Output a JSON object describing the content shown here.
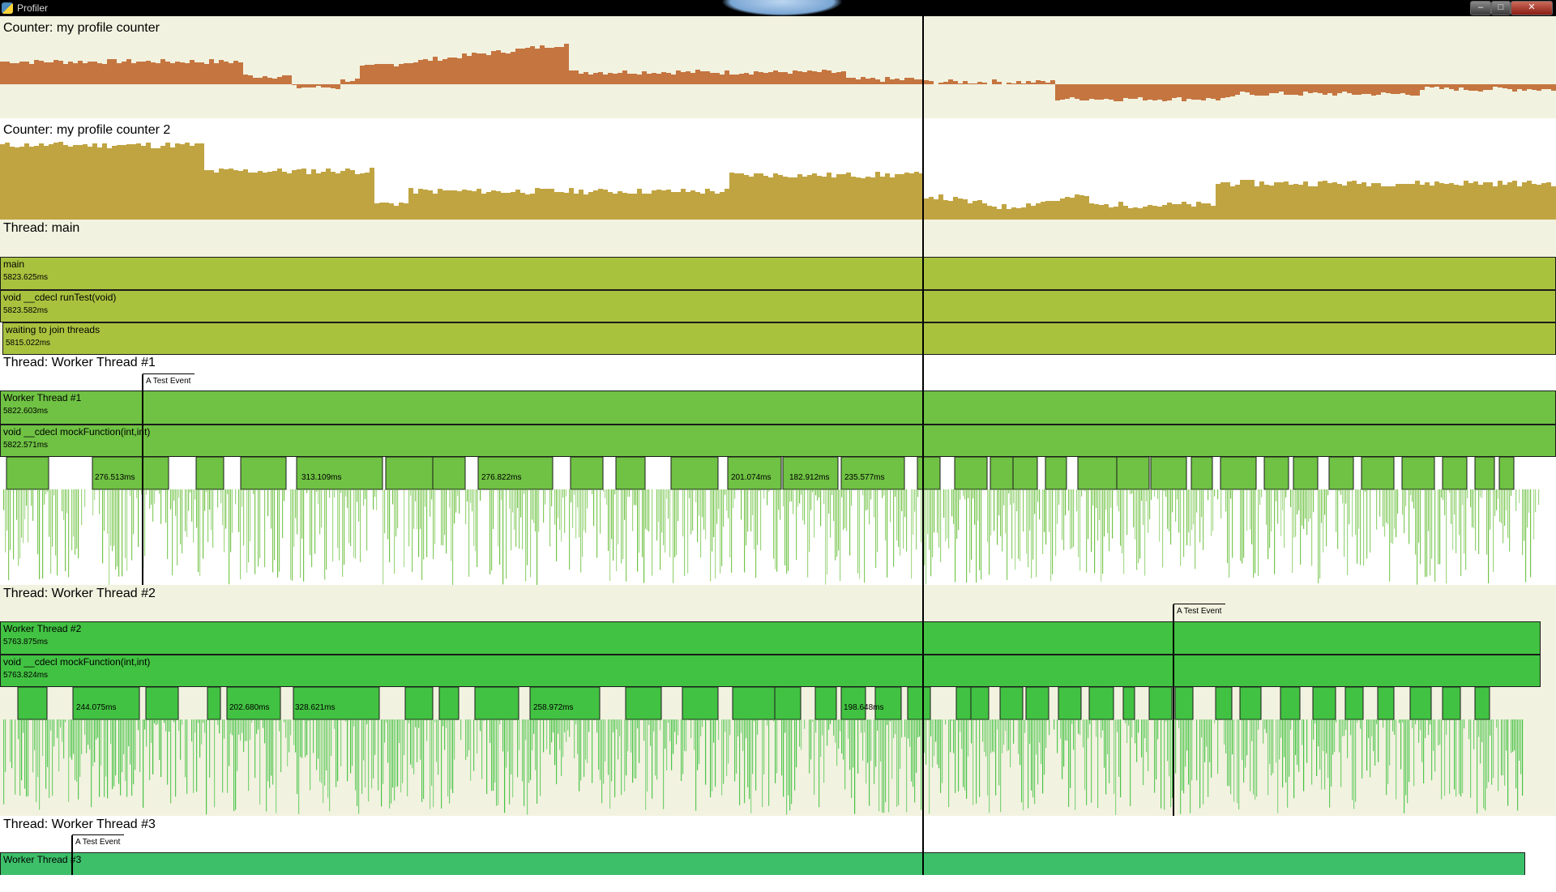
{
  "window": {
    "title": "Profiler",
    "buttons": [
      "–",
      "□",
      "✕"
    ]
  },
  "colors": {
    "lane_alt": "#f2f2e0",
    "lane_white": "#ffffff",
    "counter1": "#c57540",
    "counter2": "#c1a442",
    "main_zone": "#a8c23e",
    "worker1_zone": "#6fc243",
    "worker2_zone": "#42c242",
    "worker3_zone": "#3dbf6a"
  },
  "counters": [
    {
      "label": "Counter: my profile counter"
    },
    {
      "label": "Counter: my profile counter 2"
    }
  ],
  "threads": {
    "main": {
      "label": "Thread: main",
      "zones": [
        {
          "name": "main",
          "time": "5823.625ms"
        },
        {
          "name": "void __cdecl runTest(void)",
          "time": "5823.582ms"
        },
        {
          "name": "waiting to join threads",
          "time": "5815.022ms"
        }
      ]
    },
    "worker1": {
      "label": "Thread: Worker Thread #1",
      "event": "A Test Event",
      "zones": [
        {
          "name": "Worker Thread #1",
          "time": "5822.603ms"
        },
        {
          "name": "void __cdecl mockFunction(int,int)",
          "time": "5822.571ms"
        }
      ],
      "durations": [
        "276.513ms",
        "313.109ms",
        "276.822ms",
        "201.074ms",
        "182.912ms",
        "235.577ms"
      ]
    },
    "worker2": {
      "label": "Thread: Worker Thread #2",
      "event": "A Test Event",
      "zones": [
        {
          "name": "Worker Thread #2",
          "time": "5763.875ms"
        },
        {
          "name": "void __cdecl mockFunction(int,int)",
          "time": "5763.824ms"
        }
      ],
      "durations": [
        "244.075ms",
        "202.680ms",
        "328.621ms",
        "258.972ms",
        "198.648ms"
      ]
    },
    "worker3": {
      "label": "Thread: Worker Thread #3",
      "event": "A Test Event",
      "zones": [
        {
          "name": "Worker Thread #3",
          "time": ""
        }
      ]
    }
  }
}
